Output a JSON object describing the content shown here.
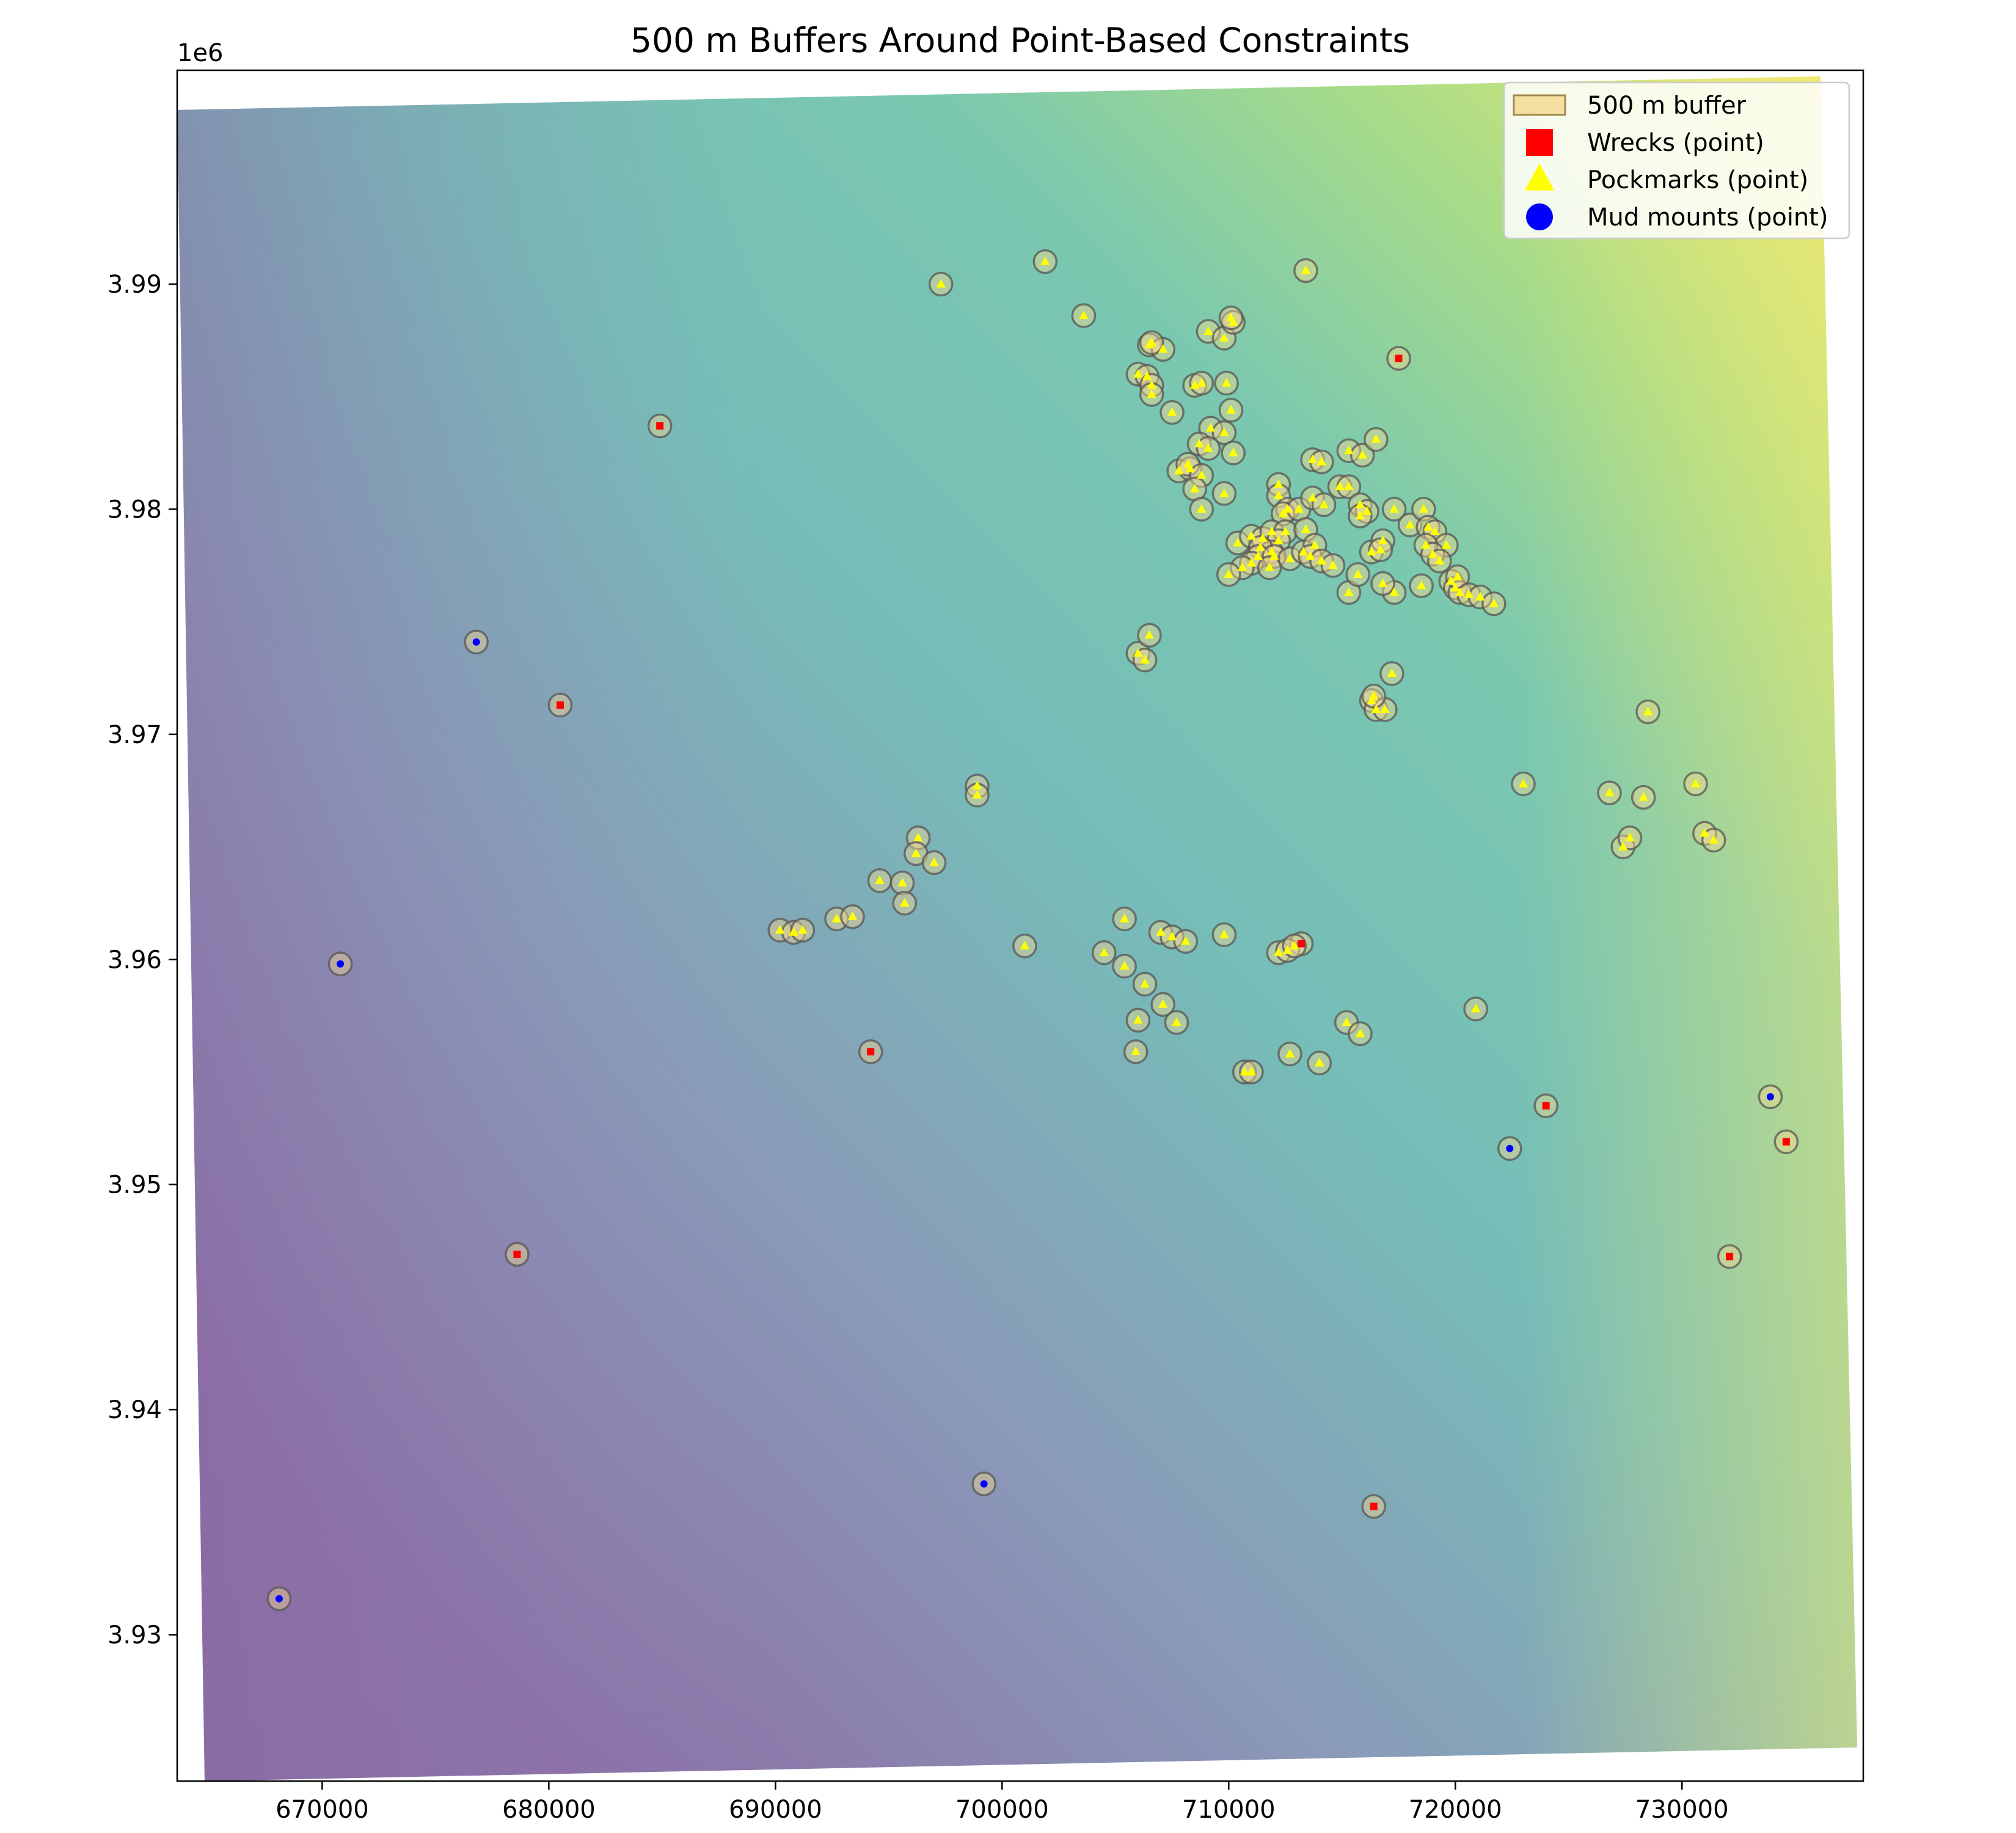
{
  "chart_data": {
    "type": "scatter",
    "title": "500 m Buffers Around Point-Based Constraints",
    "xlabel": "",
    "ylabel": "",
    "y_offset_label": "1e6",
    "xlim": [
      663600,
      738000
    ],
    "ylim": [
      3923500,
      3999500
    ],
    "xticks": [
      670000,
      680000,
      690000,
      700000,
      710000,
      720000,
      730000
    ],
    "xtick_labels": [
      "670000",
      "680000",
      "690000",
      "700000",
      "710000",
      "720000",
      "730000"
    ],
    "yticks": [
      3930000,
      3940000,
      3950000,
      3960000,
      3970000,
      3980000,
      3990000
    ],
    "ytick_labels": [
      "3.93",
      "3.94",
      "3.95",
      "3.96",
      "3.97",
      "3.98",
      "3.99"
    ],
    "grid": false,
    "legend_position": "top-right",
    "buffer_radius_m": 500,
    "background": "bathymetry raster (viridis colormap, semi-transparent)",
    "colors": {
      "buffer_fill": "#f5d78e",
      "buffer_edge": "#555555",
      "wreck": "#ff0000",
      "pockmark": "#ffff00",
      "mud_mount": "#0000ff"
    },
    "legend": [
      {
        "label": "500 m buffer",
        "kind": "buffer"
      },
      {
        "label": "Wrecks (point)",
        "kind": "wreck"
      },
      {
        "label": "Pockmarks (point)",
        "kind": "pockmark"
      },
      {
        "label": "Mud mounts (point)",
        "kind": "mud"
      }
    ],
    "series": [
      {
        "name": "Wrecks (point)",
        "points": [
          [
            684900,
            3983700
          ],
          [
            680500,
            3971300
          ],
          [
            678600,
            3946900
          ],
          [
            694200,
            3955900
          ],
          [
            717500,
            3986700
          ],
          [
            713200,
            3960700
          ],
          [
            724000,
            3953500
          ],
          [
            734600,
            3951900
          ],
          [
            732100,
            3946800
          ],
          [
            716400,
            3935700
          ]
        ]
      },
      {
        "name": "Pockmarks (point)",
        "points": [
          [
            697300,
            3990000
          ],
          [
            701900,
            3991000
          ],
          [
            703600,
            3988600
          ],
          [
            713400,
            3990600
          ],
          [
            706500,
            3987300
          ],
          [
            707100,
            3987100
          ],
          [
            706600,
            3987400
          ],
          [
            706000,
            3986000
          ],
          [
            706400,
            3985900
          ],
          [
            706600,
            3985500
          ],
          [
            706600,
            3985100
          ],
          [
            709100,
            3987900
          ],
          [
            709800,
            3987600
          ],
          [
            710200,
            3988300
          ],
          [
            710100,
            3988500
          ],
          [
            708500,
            3985500
          ],
          [
            708800,
            3985600
          ],
          [
            709900,
            3985600
          ],
          [
            707500,
            3984300
          ],
          [
            710100,
            3984400
          ],
          [
            709200,
            3983600
          ],
          [
            709800,
            3983400
          ],
          [
            708700,
            3982900
          ],
          [
            709100,
            3982700
          ],
          [
            710200,
            3982500
          ],
          [
            707800,
            3981700
          ],
          [
            708300,
            3981800
          ],
          [
            708200,
            3982000
          ],
          [
            708800,
            3981500
          ],
          [
            708500,
            3980900
          ],
          [
            709800,
            3980700
          ],
          [
            708800,
            3980000
          ],
          [
            712200,
            3981100
          ],
          [
            712200,
            3980600
          ],
          [
            712600,
            3980000
          ],
          [
            712400,
            3979800
          ],
          [
            713100,
            3980000
          ],
          [
            713700,
            3980500
          ],
          [
            714200,
            3980200
          ],
          [
            713700,
            3982200
          ],
          [
            714100,
            3982100
          ],
          [
            715300,
            3982600
          ],
          [
            715900,
            3982400
          ],
          [
            716500,
            3983100
          ],
          [
            714900,
            3981000
          ],
          [
            715300,
            3981000
          ],
          [
            715800,
            3980200
          ],
          [
            716100,
            3979900
          ],
          [
            715800,
            3979700
          ],
          [
            710400,
            3978500
          ],
          [
            711000,
            3978800
          ],
          [
            711500,
            3978700
          ],
          [
            711900,
            3979000
          ],
          [
            712500,
            3979000
          ],
          [
            713400,
            3979100
          ],
          [
            712200,
            3978600
          ],
          [
            711900,
            3978100
          ],
          [
            711400,
            3978300
          ],
          [
            711300,
            3977900
          ],
          [
            712000,
            3977900
          ],
          [
            712700,
            3977800
          ],
          [
            713300,
            3978100
          ],
          [
            713800,
            3978400
          ],
          [
            713600,
            3977900
          ],
          [
            714100,
            3977700
          ],
          [
            714600,
            3977500
          ],
          [
            711000,
            3977600
          ],
          [
            710600,
            3977400
          ],
          [
            710000,
            3977100
          ],
          [
            711800,
            3977400
          ],
          [
            716300,
            3978100
          ],
          [
            716800,
            3978600
          ],
          [
            716700,
            3978200
          ],
          [
            717300,
            3980000
          ],
          [
            718000,
            3979300
          ],
          [
            718600,
            3980000
          ],
          [
            718800,
            3979200
          ],
          [
            719100,
            3979000
          ],
          [
            719600,
            3978400
          ],
          [
            718700,
            3978400
          ],
          [
            719000,
            3978000
          ],
          [
            719300,
            3977700
          ],
          [
            718500,
            3976600
          ],
          [
            717300,
            3976300
          ],
          [
            716800,
            3976700
          ],
          [
            715300,
            3976300
          ],
          [
            715700,
            3977100
          ],
          [
            719800,
            3976800
          ],
          [
            720000,
            3976500
          ],
          [
            720200,
            3976300
          ],
          [
            720100,
            3977000
          ],
          [
            720600,
            3976200
          ],
          [
            721100,
            3976100
          ],
          [
            721700,
            3975800
          ],
          [
            706000,
            3973600
          ],
          [
            706300,
            3973300
          ],
          [
            706500,
            3974400
          ],
          [
            716300,
            3971500
          ],
          [
            716500,
            3971100
          ],
          [
            716900,
            3971100
          ],
          [
            717200,
            3972700
          ],
          [
            716400,
            3971700
          ],
          [
            728500,
            3971000
          ],
          [
            723000,
            3967800
          ],
          [
            726800,
            3967400
          ],
          [
            728300,
            3967200
          ],
          [
            730600,
            3967800
          ],
          [
            727400,
            3965000
          ],
          [
            727700,
            3965400
          ],
          [
            731000,
            3965600
          ],
          [
            731400,
            3965300
          ],
          [
            698900,
            3967700
          ],
          [
            698900,
            3967300
          ],
          [
            696300,
            3965400
          ],
          [
            696200,
            3964700
          ],
          [
            697000,
            3964300
          ],
          [
            694600,
            3963500
          ],
          [
            695600,
            3963400
          ],
          [
            695700,
            3962500
          ],
          [
            690200,
            3961300
          ],
          [
            690800,
            3961200
          ],
          [
            691200,
            3961300
          ],
          [
            692700,
            3961800
          ],
          [
            693400,
            3961900
          ],
          [
            701000,
            3960600
          ],
          [
            705400,
            3961800
          ],
          [
            704500,
            3960300
          ],
          [
            705400,
            3959700
          ],
          [
            706300,
            3958900
          ],
          [
            707000,
            3961200
          ],
          [
            707500,
            3961000
          ],
          [
            708100,
            3960800
          ],
          [
            709800,
            3961100
          ],
          [
            712200,
            3960300
          ],
          [
            712600,
            3960400
          ],
          [
            712900,
            3960600
          ],
          [
            707100,
            3958000
          ],
          [
            706000,
            3957300
          ],
          [
            707700,
            3957200
          ],
          [
            705900,
            3955900
          ],
          [
            710700,
            3955000
          ],
          [
            711000,
            3955000
          ],
          [
            712700,
            3955800
          ],
          [
            714000,
            3955400
          ],
          [
            715200,
            3957200
          ],
          [
            715800,
            3956700
          ],
          [
            720900,
            3957800
          ]
        ]
      },
      {
        "name": "Mud mounts (point)",
        "points": [
          [
            676800,
            3974100
          ],
          [
            670800,
            3959800
          ],
          [
            668100,
            3931600
          ],
          [
            699200,
            3936700
          ],
          [
            722400,
            3951600
          ],
          [
            733900,
            3953900
          ]
        ]
      }
    ]
  }
}
